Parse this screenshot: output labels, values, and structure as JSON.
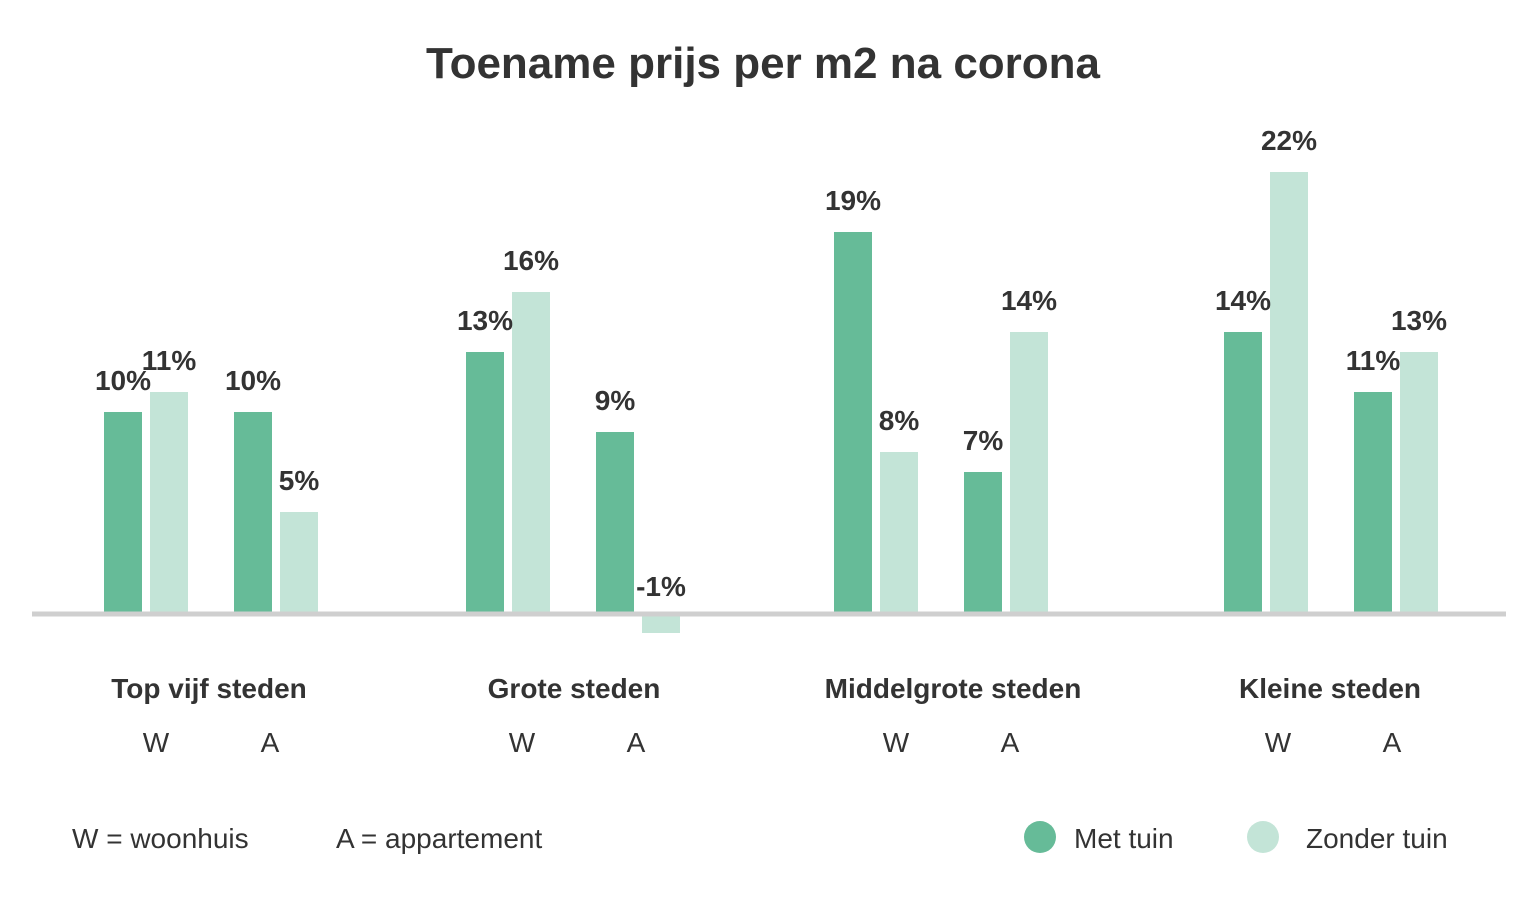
{
  "chart_data": {
    "type": "bar",
    "title": "Toename prijs per m2 na corona",
    "xlabel": "",
    "ylabel": "",
    "ylim": [
      -1,
      22
    ],
    "unit": "%",
    "grid": false,
    "legend_position": "bottom-right",
    "categories": [
      "Top vijf steden",
      "Grote steden",
      "Middelgrote steden",
      "Kleine steden"
    ],
    "subcategories": [
      "W",
      "A"
    ],
    "series": [
      {
        "name": "Met tuin",
        "color": "#66bb98",
        "values": [
          [
            10,
            10
          ],
          [
            13,
            9
          ],
          [
            19,
            7
          ],
          [
            14,
            11
          ]
        ]
      },
      {
        "name": "Zonder tuin",
        "color": "#c3e4d7",
        "values": [
          [
            11,
            5
          ],
          [
            16,
            -1
          ],
          [
            8,
            14
          ],
          [
            22,
            13
          ]
        ]
      }
    ],
    "notes": [
      "W = woonhuis",
      "A = appartement"
    ]
  }
}
